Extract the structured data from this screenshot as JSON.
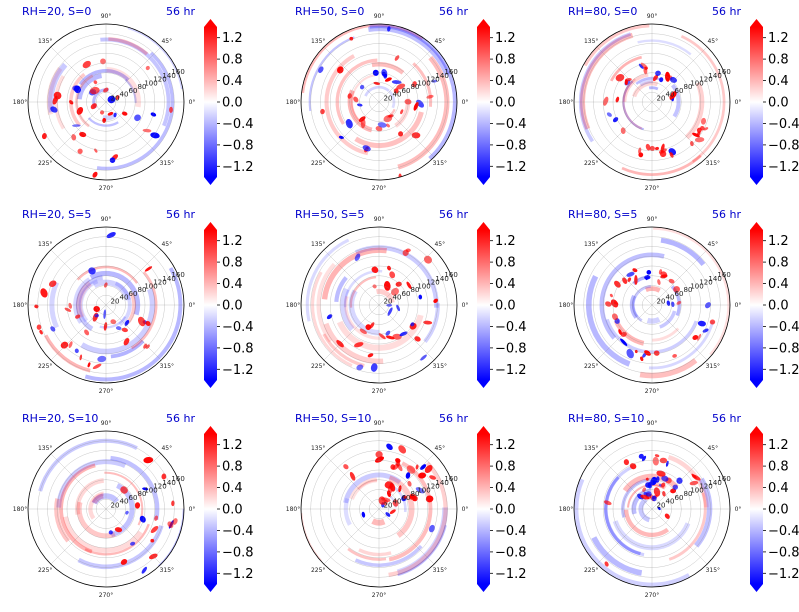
{
  "figure": {
    "colors": {
      "positive": "#ff0000",
      "negative": "#0000ff",
      "neutral": "#ffffff",
      "title": "#0000cc",
      "grid": "#888888"
    }
  },
  "chart_data": [
    {
      "type": "heatmap",
      "projection": "polar",
      "title": "RH=20, S=0",
      "time": "56 hr",
      "structure": "scattered",
      "intensity": 0.9,
      "seed": 11
    },
    {
      "type": "heatmap",
      "projection": "polar",
      "title": "RH=50, S=0",
      "time": "56 hr",
      "structure": "ring",
      "intensity": 1.0,
      "seed": 22
    },
    {
      "type": "heatmap",
      "projection": "polar",
      "title": "RH=80, S=0",
      "time": "56 hr",
      "structure": "spiral",
      "intensity": 1.0,
      "seed": 33
    },
    {
      "type": "heatmap",
      "projection": "polar",
      "title": "RH=20, S=5",
      "time": "56 hr",
      "structure": "arc-se",
      "intensity": 0.9,
      "seed": 44
    },
    {
      "type": "heatmap",
      "projection": "polar",
      "title": "RH=50, S=5",
      "time": "56 hr",
      "structure": "arc-ne",
      "intensity": 0.9,
      "seed": 55
    },
    {
      "type": "heatmap",
      "projection": "polar",
      "title": "RH=80, S=5",
      "time": "56 hr",
      "structure": "spiral",
      "intensity": 1.0,
      "seed": 66
    },
    {
      "type": "heatmap",
      "projection": "polar",
      "title": "RH=20, S=10",
      "time": "56 hr",
      "structure": "sparse-east",
      "intensity": 0.5,
      "seed": 77
    },
    {
      "type": "heatmap",
      "projection": "polar",
      "title": "RH=50, S=10",
      "time": "56 hr",
      "structure": "cluster-ne",
      "intensity": 1.0,
      "seed": 88
    },
    {
      "type": "heatmap",
      "projection": "polar",
      "title": "RH=80, S=10",
      "time": "56 hr",
      "structure": "cluster-n",
      "intensity": 1.0,
      "seed": 99
    }
  ],
  "polar_axes": {
    "angle_ticks": [
      "0°",
      "45°",
      "90°",
      "135°",
      "180°",
      "225°",
      "270°",
      "315°"
    ],
    "radial_ticks": [
      "20",
      "40",
      "60",
      "80",
      "100",
      "120",
      "140",
      "160"
    ]
  },
  "colorbar": {
    "ticks": [
      "1.2",
      "0.8",
      "0.4",
      "0.0",
      "−0.4",
      "−0.8",
      "−1.2"
    ],
    "range": [
      -1.4,
      1.4
    ]
  }
}
